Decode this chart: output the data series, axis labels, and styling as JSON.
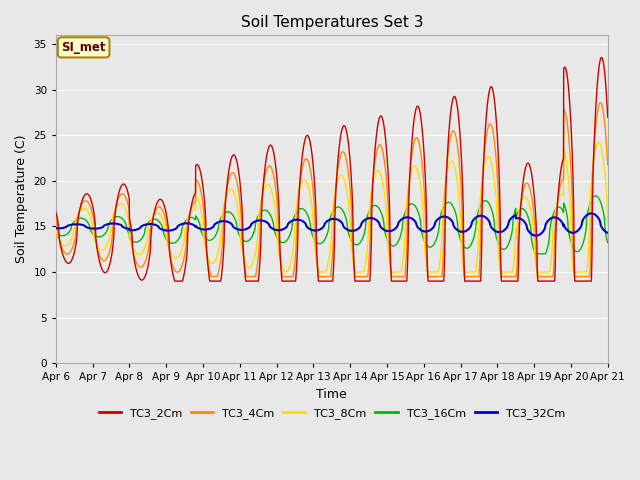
{
  "title": "Soil Temperatures Set 3",
  "xlabel": "Time",
  "ylabel": "Soil Temperature (C)",
  "ylim": [
    0,
    36
  ],
  "yticks": [
    0,
    5,
    10,
    15,
    20,
    25,
    30,
    35
  ],
  "bg_color": "#e8e8e8",
  "annotation_text": "SI_met",
  "annotation_bg": "#ffffcc",
  "annotation_border": "#aa8800",
  "series": [
    {
      "label": "TC3_2Cm",
      "color": "#cc0000",
      "linewidth": 1.0,
      "zorder": 5
    },
    {
      "label": "TC3_4Cm",
      "color": "#ff8800",
      "linewidth": 1.0,
      "zorder": 4
    },
    {
      "label": "TC3_8Cm",
      "color": "#ffdd00",
      "linewidth": 1.0,
      "zorder": 3
    },
    {
      "label": "TC3_16Cm",
      "color": "#00bb00",
      "linewidth": 1.0,
      "zorder": 2
    },
    {
      "label": "TC3_32Cm",
      "color": "#0000cc",
      "linewidth": 1.5,
      "zorder": 6
    }
  ],
  "xtick_labels": [
    "Apr 6",
    "Apr 7",
    "Apr 8",
    "Apr 9",
    "Apr 10",
    "Apr 11",
    "Apr 12",
    "Apr 13",
    "Apr 14",
    "Apr 15",
    "Apr 16",
    "Apr 17",
    "Apr 18",
    "Apr 19",
    "Apr 20",
    "Apr 21"
  ],
  "grid_color": "#ffffff",
  "figsize": [
    6.4,
    4.8
  ],
  "dpi": 100
}
